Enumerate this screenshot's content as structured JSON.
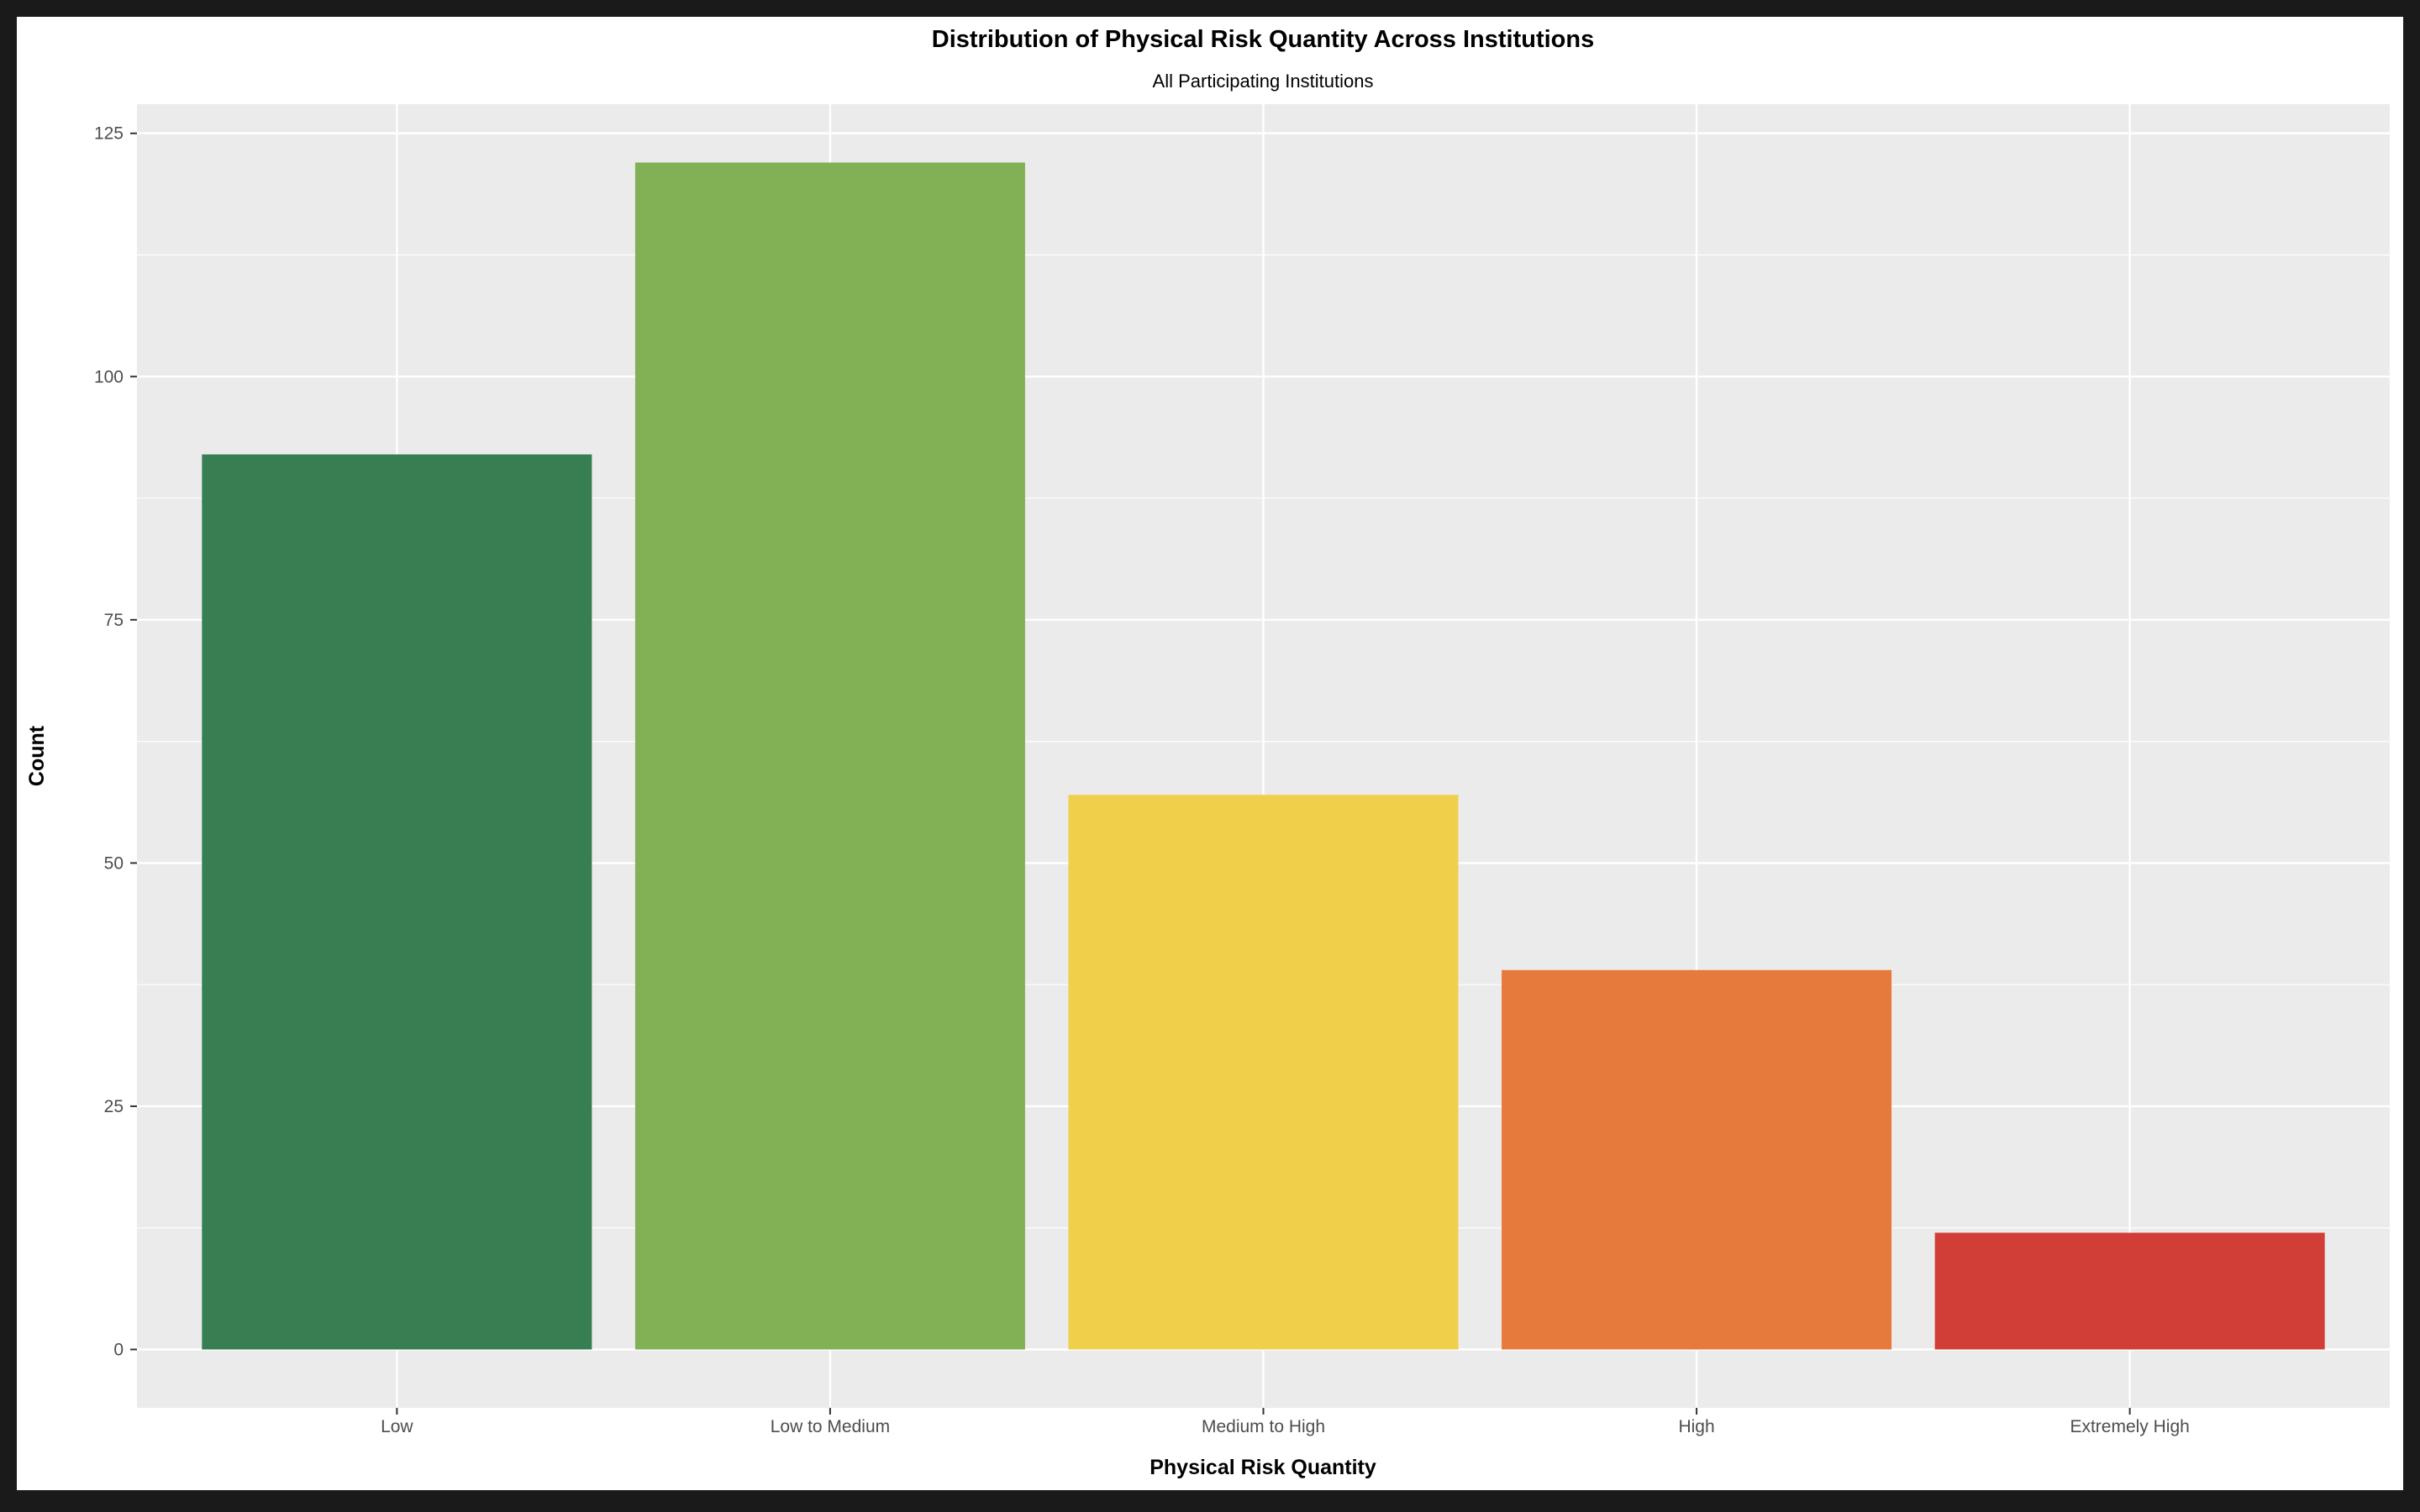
{
  "chart_data": {
    "type": "bar",
    "title": "Distribution of Physical Risk Quantity Across Institutions",
    "subtitle": "All Participating Institutions",
    "xlabel": "Physical Risk Quantity",
    "ylabel": "Count",
    "categories": [
      "Low",
      "Low to Medium",
      "Medium to High",
      "High",
      "Extremely High"
    ],
    "values": [
      92,
      122,
      57,
      39,
      12
    ],
    "colors": [
      "#377e52",
      "#82b055",
      "#f0cf4b",
      "#e67a3d",
      "#d13e37"
    ],
    "ylim": [
      -6,
      128
    ],
    "yticks": [
      0,
      25,
      50,
      75,
      100,
      125
    ],
    "ytick_labels": [
      "0",
      "25",
      "50",
      "75",
      "100",
      "125"
    ],
    "grid": true,
    "legend": "none",
    "panel_background": "#ebebeb",
    "grid_color": "#ffffff"
  }
}
